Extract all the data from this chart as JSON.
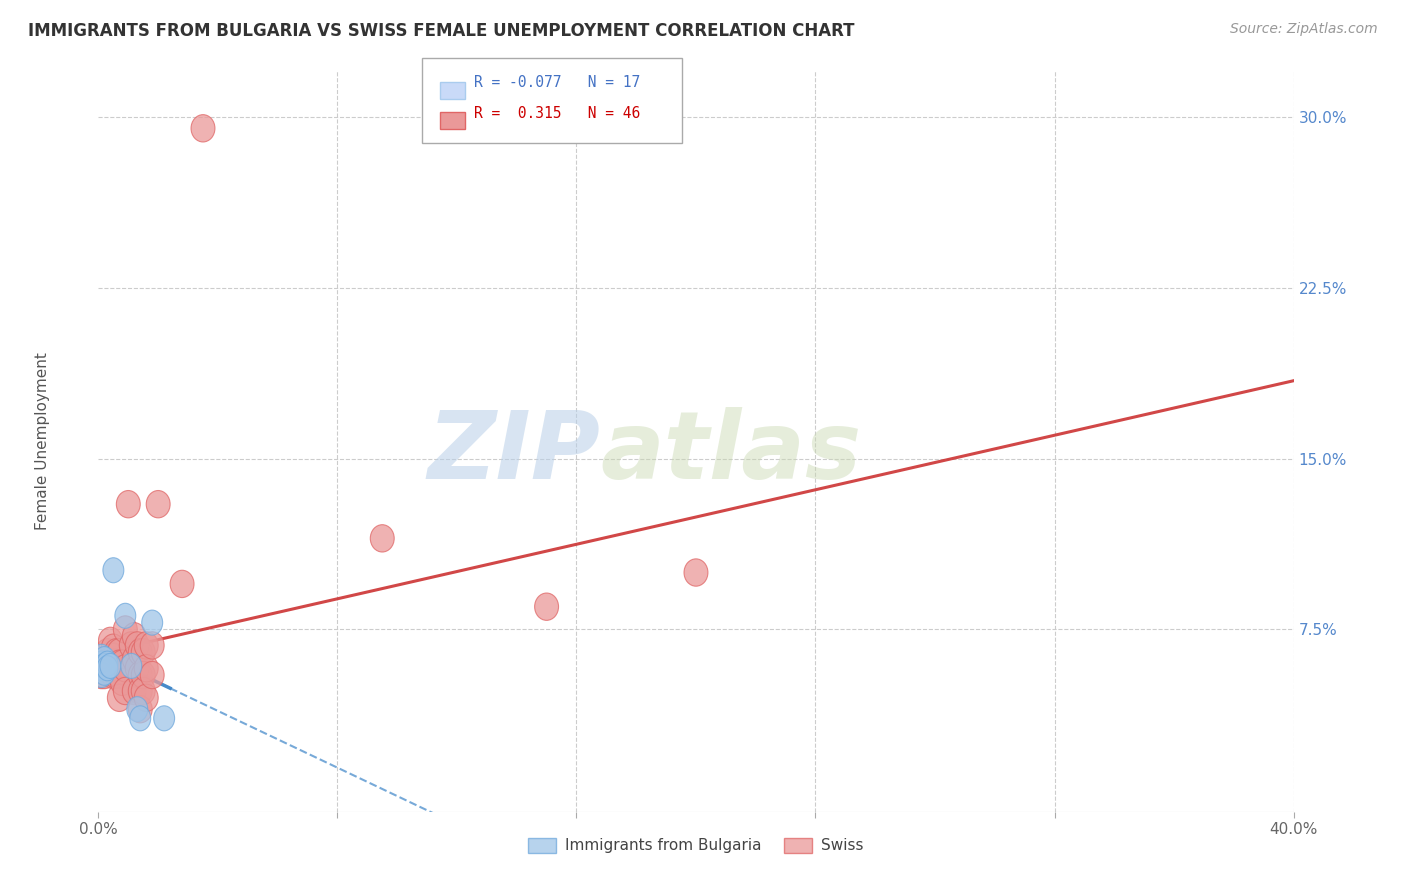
{
  "title": "IMMIGRANTS FROM BULGARIA VS SWISS FEMALE UNEMPLOYMENT CORRELATION CHART",
  "source": "Source: ZipAtlas.com",
  "ylabel": "Female Unemployment",
  "xlim": [
    0.0,
    0.4
  ],
  "ylim": [
    -0.005,
    0.32
  ],
  "xticks": [
    0.0,
    0.08,
    0.16,
    0.24,
    0.32,
    0.4
  ],
  "xticklabels": [
    "0.0%",
    "",
    "",
    "",
    "",
    "40.0%"
  ],
  "yticks": [
    0.075,
    0.15,
    0.225,
    0.3
  ],
  "yticklabels": [
    "7.5%",
    "15.0%",
    "22.5%",
    "30.0%"
  ],
  "bg_color": "#ffffff",
  "grid_color": "#cccccc",
  "watermark_zip": "ZIP",
  "watermark_atlas": "atlas",
  "blue_color": "#9fc5e8",
  "pink_color": "#ea9999",
  "blue_edge_color": "#6fa8dc",
  "pink_edge_color": "#e06666",
  "blue_line_color": "#3d85c8",
  "pink_line_color": "#cc3333",
  "blue_scatter": [
    [
      0.001,
      0.063
    ],
    [
      0.001,
      0.06
    ],
    [
      0.001,
      0.058
    ],
    [
      0.001,
      0.055
    ],
    [
      0.002,
      0.062
    ],
    [
      0.002,
      0.059
    ],
    [
      0.002,
      0.056
    ],
    [
      0.003,
      0.06
    ],
    [
      0.003,
      0.058
    ],
    [
      0.004,
      0.059
    ],
    [
      0.005,
      0.101
    ],
    [
      0.009,
      0.081
    ],
    [
      0.011,
      0.059
    ],
    [
      0.013,
      0.04
    ],
    [
      0.014,
      0.036
    ],
    [
      0.018,
      0.078
    ],
    [
      0.022,
      0.036
    ]
  ],
  "pink_scatter": [
    [
      0.001,
      0.055
    ],
    [
      0.002,
      0.06
    ],
    [
      0.002,
      0.055
    ],
    [
      0.003,
      0.065
    ],
    [
      0.003,
      0.06
    ],
    [
      0.004,
      0.07
    ],
    [
      0.004,
      0.058
    ],
    [
      0.005,
      0.067
    ],
    [
      0.005,
      0.063
    ],
    [
      0.005,
      0.055
    ],
    [
      0.006,
      0.065
    ],
    [
      0.006,
      0.055
    ],
    [
      0.007,
      0.065
    ],
    [
      0.007,
      0.06
    ],
    [
      0.007,
      0.055
    ],
    [
      0.007,
      0.045
    ],
    [
      0.008,
      0.06
    ],
    [
      0.008,
      0.052
    ],
    [
      0.009,
      0.075
    ],
    [
      0.009,
      0.058
    ],
    [
      0.009,
      0.048
    ],
    [
      0.01,
      0.13
    ],
    [
      0.011,
      0.068
    ],
    [
      0.012,
      0.072
    ],
    [
      0.012,
      0.062
    ],
    [
      0.012,
      0.048
    ],
    [
      0.013,
      0.068
    ],
    [
      0.013,
      0.058
    ],
    [
      0.014,
      0.065
    ],
    [
      0.014,
      0.055
    ],
    [
      0.014,
      0.048
    ],
    [
      0.014,
      0.04
    ],
    [
      0.015,
      0.065
    ],
    [
      0.015,
      0.055
    ],
    [
      0.015,
      0.048
    ],
    [
      0.016,
      0.068
    ],
    [
      0.016,
      0.058
    ],
    [
      0.016,
      0.045
    ],
    [
      0.018,
      0.068
    ],
    [
      0.018,
      0.055
    ],
    [
      0.02,
      0.13
    ],
    [
      0.028,
      0.095
    ],
    [
      0.035,
      0.295
    ],
    [
      0.095,
      0.115
    ],
    [
      0.15,
      0.085
    ],
    [
      0.2,
      0.1
    ]
  ]
}
